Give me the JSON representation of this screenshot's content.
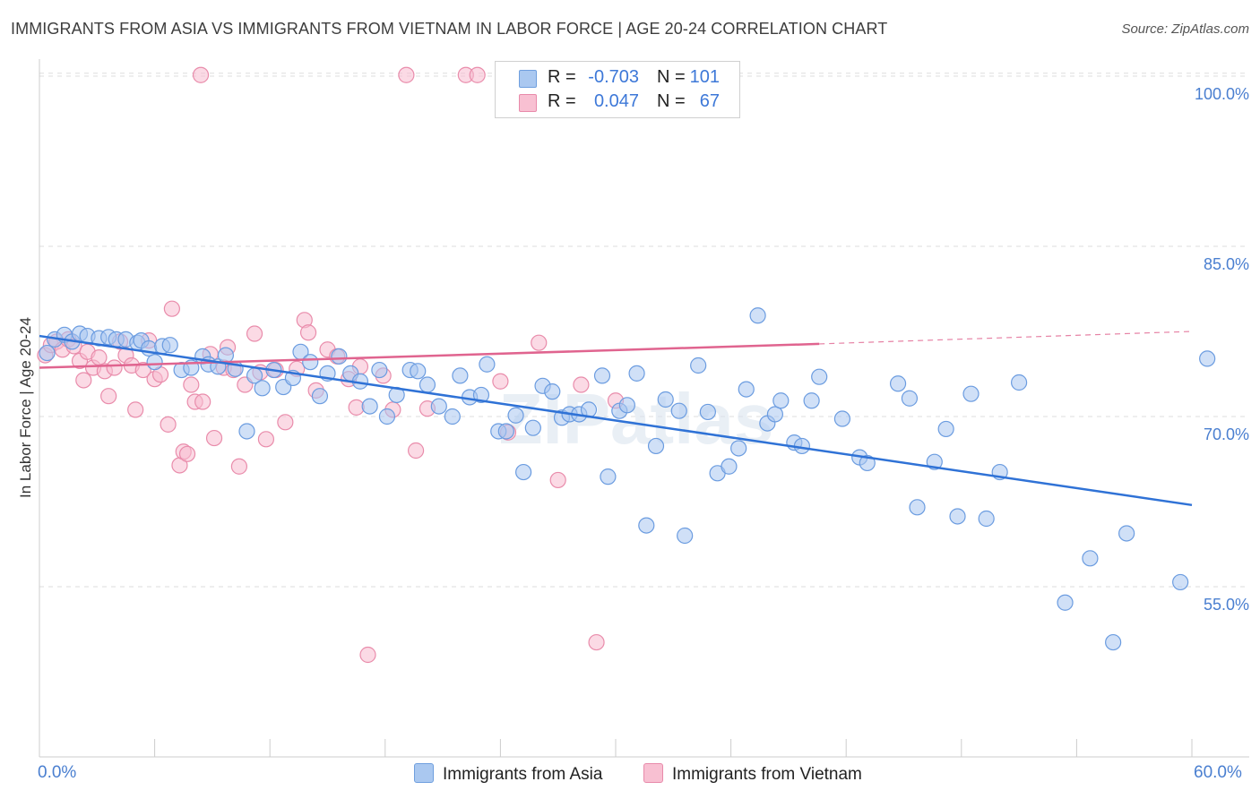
{
  "title": "IMMIGRANTS FROM ASIA VS IMMIGRANTS FROM VIETNAM IN LABOR FORCE | AGE 20-24 CORRELATION CHART",
  "source": "Source: ZipAtlas.com",
  "watermark": "ZIPatlas",
  "legend": {
    "r_label": "R =",
    "n_label": "N =",
    "rows": [
      {
        "r": "-0.703",
        "n": "101",
        "color": "#aac8f0",
        "border": "#6f9fde"
      },
      {
        "r": "0.047",
        "n": "67",
        "color": "#f8c0d2",
        "border": "#e88aaa"
      }
    ]
  },
  "x_min_label": "0.0%",
  "x_max_label": "60.0%",
  "colors": {
    "asia_fill": "#a9c7f0",
    "asia_stroke": "#6b9ce0",
    "asia_line": "#2f72d6",
    "vietnam_fill": "#f7bcd0",
    "vietnam_stroke": "#e98cab",
    "vietnam_line": "#e0648f",
    "grid": "#dddddd",
    "tick_text": "#4a7fd0"
  },
  "chart_data": {
    "type": "scatter",
    "title": "IMMIGRANTS FROM ASIA VS IMMIGRANTS FROM VIETNAM IN LABOR FORCE | AGE 20-24 CORRELATION CHART",
    "xlabel": "",
    "ylabel": "In Labor Force | Age 20-24",
    "xlim": [
      0,
      60
    ],
    "ylim": [
      40,
      101.5
    ],
    "yticks": [
      55,
      70,
      85,
      100
    ],
    "ytick_labels": [
      "55.0%",
      "70.0%",
      "85.0%",
      "100.0%"
    ],
    "grid": true,
    "legend_position": "top-center",
    "series": [
      {
        "name": "Immigrants from Asia",
        "trend": {
          "x": [
            0,
            60
          ],
          "y": [
            77.1,
            62.2
          ]
        },
        "points": [
          [
            0.4,
            75.6
          ],
          [
            0.8,
            76.8
          ],
          [
            1.3,
            77.2
          ],
          [
            1.7,
            76.6
          ],
          [
            2.1,
            77.3
          ],
          [
            2.5,
            77.1
          ],
          [
            3.1,
            76.9
          ],
          [
            3.6,
            77.0
          ],
          [
            4.0,
            76.8
          ],
          [
            4.5,
            76.8
          ],
          [
            5.1,
            76.5
          ],
          [
            5.3,
            76.7
          ],
          [
            5.7,
            76.0
          ],
          [
            6.0,
            74.8
          ],
          [
            6.4,
            76.2
          ],
          [
            6.8,
            76.3
          ],
          [
            7.4,
            74.1
          ],
          [
            7.9,
            74.3
          ],
          [
            8.5,
            75.3
          ],
          [
            8.8,
            74.6
          ],
          [
            9.3,
            74.4
          ],
          [
            9.7,
            75.4
          ],
          [
            10.2,
            74.2
          ],
          [
            10.8,
            68.7
          ],
          [
            11.2,
            73.6
          ],
          [
            11.6,
            72.5
          ],
          [
            12.2,
            74.1
          ],
          [
            12.7,
            72.6
          ],
          [
            13.2,
            73.4
          ],
          [
            13.6,
            75.7
          ],
          [
            14.1,
            74.8
          ],
          [
            14.6,
            71.8
          ],
          [
            15.0,
            73.8
          ],
          [
            15.6,
            75.3
          ],
          [
            16.2,
            73.8
          ],
          [
            16.7,
            73.1
          ],
          [
            17.2,
            70.9
          ],
          [
            17.7,
            74.1
          ],
          [
            18.1,
            70.0
          ],
          [
            18.6,
            71.9
          ],
          [
            19.3,
            74.1
          ],
          [
            19.7,
            74.0
          ],
          [
            20.2,
            72.8
          ],
          [
            20.8,
            70.9
          ],
          [
            21.5,
            70.0
          ],
          [
            21.9,
            73.6
          ],
          [
            22.4,
            71.7
          ],
          [
            23.0,
            71.9
          ],
          [
            23.3,
            74.6
          ],
          [
            23.9,
            68.7
          ],
          [
            24.3,
            68.7
          ],
          [
            24.8,
            70.1
          ],
          [
            25.2,
            65.1
          ],
          [
            25.7,
            69.0
          ],
          [
            26.2,
            72.7
          ],
          [
            26.7,
            72.2
          ],
          [
            27.2,
            69.9
          ],
          [
            27.6,
            70.2
          ],
          [
            28.1,
            70.2
          ],
          [
            28.6,
            70.6
          ],
          [
            29.3,
            73.6
          ],
          [
            29.6,
            64.7
          ],
          [
            30.2,
            70.5
          ],
          [
            30.6,
            71.0
          ],
          [
            31.1,
            73.8
          ],
          [
            31.6,
            60.4
          ],
          [
            32.1,
            67.4
          ],
          [
            32.6,
            71.5
          ],
          [
            33.3,
            70.5
          ],
          [
            33.6,
            59.5
          ],
          [
            34.3,
            74.5
          ],
          [
            34.8,
            70.4
          ],
          [
            35.3,
            65.0
          ],
          [
            35.9,
            65.6
          ],
          [
            36.4,
            67.2
          ],
          [
            36.8,
            72.4
          ],
          [
            37.4,
            78.9
          ],
          [
            37.9,
            69.4
          ],
          [
            38.3,
            70.2
          ],
          [
            38.6,
            71.4
          ],
          [
            39.3,
            67.7
          ],
          [
            39.7,
            67.4
          ],
          [
            40.2,
            71.4
          ],
          [
            40.6,
            73.5
          ],
          [
            41.8,
            69.8
          ],
          [
            42.7,
            66.4
          ],
          [
            43.1,
            65.9
          ],
          [
            44.7,
            72.9
          ],
          [
            45.3,
            71.6
          ],
          [
            45.7,
            62.0
          ],
          [
            46.6,
            66.0
          ],
          [
            47.2,
            68.9
          ],
          [
            47.8,
            61.2
          ],
          [
            48.5,
            72.0
          ],
          [
            49.3,
            61.0
          ],
          [
            50.0,
            65.1
          ],
          [
            51.0,
            73.0
          ],
          [
            53.4,
            53.6
          ],
          [
            54.7,
            57.5
          ],
          [
            55.9,
            50.1
          ],
          [
            56.6,
            59.7
          ],
          [
            59.4,
            55.4
          ],
          [
            60.8,
            75.1
          ]
        ]
      },
      {
        "name": "Immigrants from Vietnam",
        "trend": {
          "x": [
            0,
            40.6
          ],
          "y": [
            74.3,
            76.4
          ]
        },
        "trend_dashed": {
          "x": [
            40.6,
            60
          ],
          "y": [
            76.4,
            77.5
          ]
        },
        "points": [
          [
            0.3,
            75.4
          ],
          [
            0.6,
            76.3
          ],
          [
            0.9,
            76.6
          ],
          [
            1.2,
            75.9
          ],
          [
            1.5,
            76.8
          ],
          [
            1.8,
            76.2
          ],
          [
            2.1,
            74.9
          ],
          [
            2.3,
            73.2
          ],
          [
            2.5,
            75.7
          ],
          [
            2.8,
            74.3
          ],
          [
            3.1,
            75.2
          ],
          [
            3.4,
            74.0
          ],
          [
            3.6,
            71.8
          ],
          [
            3.9,
            74.3
          ],
          [
            4.2,
            76.6
          ],
          [
            4.5,
            75.4
          ],
          [
            4.8,
            74.5
          ],
          [
            5.0,
            70.6
          ],
          [
            5.4,
            74.1
          ],
          [
            5.7,
            76.7
          ],
          [
            6.0,
            73.3
          ],
          [
            6.3,
            73.7
          ],
          [
            6.7,
            69.3
          ],
          [
            6.9,
            79.5
          ],
          [
            7.3,
            65.7
          ],
          [
            7.5,
            66.9
          ],
          [
            7.7,
            66.7
          ],
          [
            7.9,
            72.8
          ],
          [
            8.1,
            71.3
          ],
          [
            8.5,
            71.3
          ],
          [
            8.9,
            75.5
          ],
          [
            9.1,
            68.1
          ],
          [
            9.6,
            74.3
          ],
          [
            9.8,
            76.1
          ],
          [
            10.1,
            74.1
          ],
          [
            10.4,
            65.6
          ],
          [
            10.7,
            72.8
          ],
          [
            11.2,
            77.3
          ],
          [
            11.5,
            73.9
          ],
          [
            11.8,
            68.0
          ],
          [
            12.3,
            74.1
          ],
          [
            12.8,
            69.5
          ],
          [
            13.4,
            74.2
          ],
          [
            13.8,
            78.5
          ],
          [
            14.0,
            77.4
          ],
          [
            14.4,
            72.3
          ],
          [
            15.0,
            75.9
          ],
          [
            15.5,
            75.3
          ],
          [
            16.1,
            73.3
          ],
          [
            16.5,
            70.8
          ],
          [
            16.7,
            74.4
          ],
          [
            17.1,
            49.0
          ],
          [
            17.9,
            73.6
          ],
          [
            18.4,
            70.6
          ],
          [
            19.1,
            100.1
          ],
          [
            19.6,
            67.0
          ],
          [
            20.2,
            70.7
          ],
          [
            22.2,
            100.1
          ],
          [
            22.8,
            100.1
          ],
          [
            24.0,
            73.1
          ],
          [
            24.4,
            68.6
          ],
          [
            26.0,
            76.5
          ],
          [
            27.0,
            64.4
          ],
          [
            28.2,
            72.8
          ],
          [
            29.0,
            50.1
          ],
          [
            30.0,
            71.4
          ],
          [
            8.4,
            100.1
          ]
        ]
      }
    ]
  }
}
